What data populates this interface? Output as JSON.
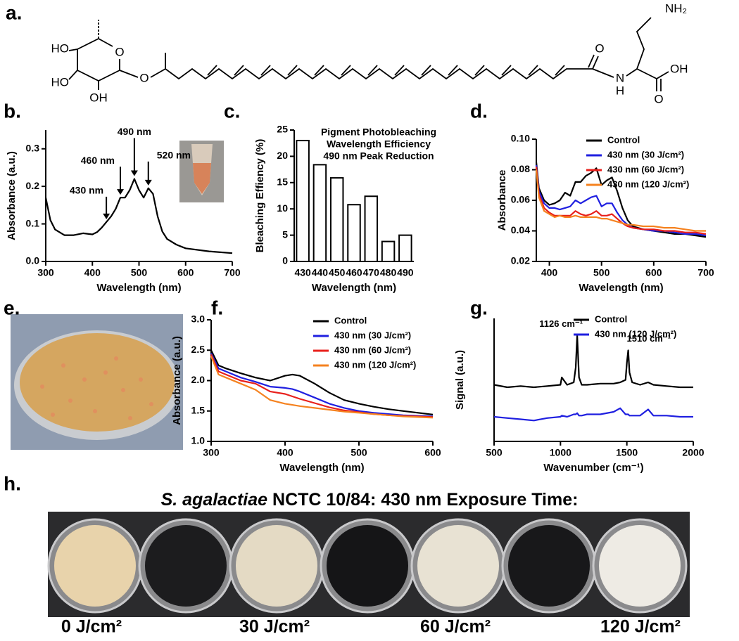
{
  "panel_labels": [
    "a.",
    "b.",
    "c.",
    "d.",
    "e.",
    "f.",
    "g.",
    "h."
  ],
  "molecule": {
    "atoms": [
      "NH₂",
      "HO",
      "HO",
      "OH",
      "O",
      "O",
      "O",
      "N",
      "H",
      "OH",
      "O"
    ]
  },
  "chart_data": [
    {
      "type": "line",
      "xlabel": "Wavelength (nm)",
      "ylabel": "Absorbance (a.u.)",
      "color": "#000000",
      "x": [
        300,
        310,
        320,
        340,
        360,
        380,
        400,
        410,
        420,
        430,
        440,
        450,
        460,
        470,
        480,
        490,
        500,
        510,
        520,
        530,
        540,
        550,
        560,
        580,
        600,
        650,
        700
      ],
      "values": [
        0.17,
        0.11,
        0.085,
        0.07,
        0.07,
        0.075,
        0.072,
        0.078,
        0.09,
        0.105,
        0.12,
        0.14,
        0.17,
        0.17,
        0.19,
        0.22,
        0.19,
        0.17,
        0.195,
        0.18,
        0.12,
        0.08,
        0.06,
        0.045,
        0.035,
        0.027,
        0.022
      ],
      "xlim": [
        300,
        700
      ],
      "xticks": [
        300,
        400,
        500,
        600,
        700
      ],
      "ylim": [
        0,
        0.35
      ],
      "yticks": [
        {
          "value": 0,
          "label": "0.0"
        },
        0.1,
        0.2,
        0.3
      ],
      "annotations": [
        {
          "text": "430 nm",
          "x": 430
        },
        {
          "text": "460 nm",
          "x": 460
        },
        {
          "text": "490 nm",
          "x": 490
        },
        {
          "text": "520 nm",
          "x": 520
        }
      ]
    },
    {
      "type": "bar",
      "xlabel": "Wavelength (nm)",
      "ylabel": "Bleaching Effiency (%)",
      "color": "#ffffff",
      "categories": [
        "430",
        "440",
        "450",
        "460",
        "470",
        "480",
        "490"
      ],
      "values": [
        23,
        18.4,
        15.9,
        10.8,
        12.4,
        3.8,
        5.0
      ],
      "ylim": [
        0,
        25
      ],
      "yticks": [
        0,
        5,
        10,
        15,
        20,
        25
      ],
      "annotation": [
        "Pigment Photobleaching",
        "Wavelength Efficiency",
        "490 nm Peak Reduction"
      ]
    },
    {
      "type": "line",
      "xlabel": "Wavelength (nm)",
      "ylabel": "Absorbance",
      "legend": "upper right",
      "x": [
        375,
        380,
        390,
        400,
        410,
        420,
        430,
        440,
        450,
        460,
        470,
        480,
        490,
        500,
        510,
        520,
        530,
        540,
        550,
        560,
        580,
        600,
        620,
        640,
        660,
        680,
        700
      ],
      "series": [
        {
          "name": "Control",
          "color": "#000000",
          "values": [
            0.085,
            0.068,
            0.06,
            0.057,
            0.058,
            0.06,
            0.065,
            0.063,
            0.072,
            0.072,
            0.076,
            0.078,
            0.081,
            0.07,
            0.073,
            0.075,
            0.066,
            0.055,
            0.047,
            0.043,
            0.041,
            0.04,
            0.039,
            0.038,
            0.038,
            0.037,
            0.036
          ]
        },
        {
          "name": "430 nm (30 J/cm²)",
          "color": "#1f1fe0",
          "values": [
            0.083,
            0.066,
            0.058,
            0.055,
            0.055,
            0.054,
            0.055,
            0.056,
            0.06,
            0.058,
            0.06,
            0.062,
            0.063,
            0.056,
            0.058,
            0.058,
            0.052,
            0.047,
            0.044,
            0.042,
            0.041,
            0.04,
            0.04,
            0.039,
            0.038,
            0.038,
            0.037
          ]
        },
        {
          "name": "430 nm (60 J/cm²)",
          "color": "#e8201c",
          "values": [
            0.082,
            0.064,
            0.055,
            0.052,
            0.05,
            0.05,
            0.05,
            0.05,
            0.053,
            0.051,
            0.05,
            0.051,
            0.053,
            0.05,
            0.05,
            0.051,
            0.048,
            0.045,
            0.043,
            0.042,
            0.041,
            0.041,
            0.04,
            0.04,
            0.039,
            0.039,
            0.038
          ]
        },
        {
          "name": "430 nm (120 J/cm²)",
          "color": "#f5821f",
          "values": [
            0.08,
            0.062,
            0.053,
            0.051,
            0.049,
            0.05,
            0.049,
            0.049,
            0.05,
            0.049,
            0.049,
            0.049,
            0.049,
            0.048,
            0.048,
            0.047,
            0.046,
            0.045,
            0.044,
            0.044,
            0.043,
            0.043,
            0.042,
            0.042,
            0.041,
            0.04,
            0.04
          ]
        }
      ],
      "xlim": [
        375,
        700
      ],
      "xticks": [
        400,
        500,
        600,
        700
      ],
      "ylim": [
        0.02,
        0.1
      ],
      "yticks": [
        0.02,
        0.04,
        0.06,
        0.08,
        {
          "value": 0.1,
          "label": "0.10"
        }
      ]
    },
    {
      "type": "line",
      "xlabel": "Wavelength (nm)",
      "ylabel": "Absorbance (a.u.)",
      "legend": "upper right",
      "x": [
        300,
        310,
        320,
        340,
        360,
        380,
        400,
        410,
        420,
        440,
        460,
        480,
        500,
        520,
        540,
        560,
        580,
        600
      ],
      "series": [
        {
          "name": "Control",
          "color": "#000000",
          "values": [
            2.5,
            2.25,
            2.2,
            2.12,
            2.05,
            2.0,
            2.08,
            2.1,
            2.08,
            1.95,
            1.8,
            1.68,
            1.62,
            1.57,
            1.53,
            1.5,
            1.47,
            1.44
          ]
        },
        {
          "name": "430 nm (30 J/cm²)",
          "color": "#1f1fe0",
          "values": [
            2.45,
            2.2,
            2.15,
            2.05,
            1.98,
            1.9,
            1.88,
            1.86,
            1.82,
            1.72,
            1.62,
            1.55,
            1.5,
            1.47,
            1.45,
            1.43,
            1.42,
            1.41
          ]
        },
        {
          "name": "430 nm (60 J/cm²)",
          "color": "#e8201c",
          "values": [
            2.43,
            2.15,
            2.1,
            2.0,
            1.95,
            1.82,
            1.78,
            1.74,
            1.7,
            1.63,
            1.56,
            1.51,
            1.48,
            1.45,
            1.43,
            1.42,
            1.41,
            1.4
          ]
        },
        {
          "name": "430 nm (120 J/cm²)",
          "color": "#f5821f",
          "values": [
            2.4,
            2.1,
            2.05,
            1.95,
            1.85,
            1.68,
            1.62,
            1.6,
            1.58,
            1.55,
            1.52,
            1.49,
            1.47,
            1.45,
            1.43,
            1.41,
            1.4,
            1.39
          ]
        }
      ],
      "xlim": [
        300,
        600
      ],
      "xticks": [
        300,
        400,
        500,
        600
      ],
      "ylim": [
        1,
        3
      ],
      "yticks": [
        {
          "value": 1,
          "label": "1.0"
        },
        1.5,
        {
          "value": 2,
          "label": "2.0"
        },
        2.5,
        {
          "value": 3,
          "label": "3.0"
        }
      ]
    },
    {
      "type": "line",
      "xlabel": "Wavenumber (cm⁻¹)",
      "ylabel": "Signal (a.u.)",
      "legend": "upper right",
      "x": [
        500,
        600,
        700,
        800,
        900,
        1000,
        1010,
        1050,
        1100,
        1115,
        1126,
        1140,
        1160,
        1200,
        1300,
        1400,
        1450,
        1490,
        1500,
        1510,
        1520,
        1540,
        1600,
        1660,
        1700,
        1800,
        1900,
        2000
      ],
      "series": [
        {
          "name": "Control",
          "color": "#000000",
          "values": [
            2.3,
            2.2,
            2.25,
            2.2,
            2.25,
            2.3,
            2.6,
            2.3,
            2.4,
            3.0,
            4.3,
            2.6,
            2.3,
            2.3,
            2.35,
            2.35,
            2.4,
            2.5,
            3.2,
            3.7,
            2.8,
            2.4,
            2.3,
            2.4,
            2.3,
            2.25,
            2.2,
            2.2
          ]
        },
        {
          "name": "430 nm (120 J/cm²)",
          "color": "#1f1fe0",
          "values": [
            1.0,
            0.95,
            0.9,
            0.85,
            0.95,
            1.0,
            1.05,
            1.0,
            1.1,
            1.1,
            1.15,
            1.05,
            1.05,
            1.1,
            1.1,
            1.2,
            1.35,
            1.1,
            1.1,
            1.1,
            1.05,
            1.05,
            1.05,
            1.3,
            1.05,
            1.05,
            1.0,
            1.0
          ]
        }
      ],
      "xlim": [
        500,
        2000
      ],
      "xticks": [
        500,
        1000,
        1500,
        2000
      ],
      "ylim": [
        0,
        5
      ],
      "annotations": [
        {
          "text": "1126 cm⁻¹",
          "x": 1126
        },
        {
          "text": "1510 cm⁻¹",
          "x": 1510
        }
      ]
    }
  ],
  "wells": {
    "title_italic": "S. agalactiae",
    "title_rest": " NCTC 10/84: 430 nm Exposure Time:",
    "labels": [
      "0 J/cm²",
      "30 J/cm²",
      "60 J/cm²",
      "120 J/cm²"
    ]
  }
}
